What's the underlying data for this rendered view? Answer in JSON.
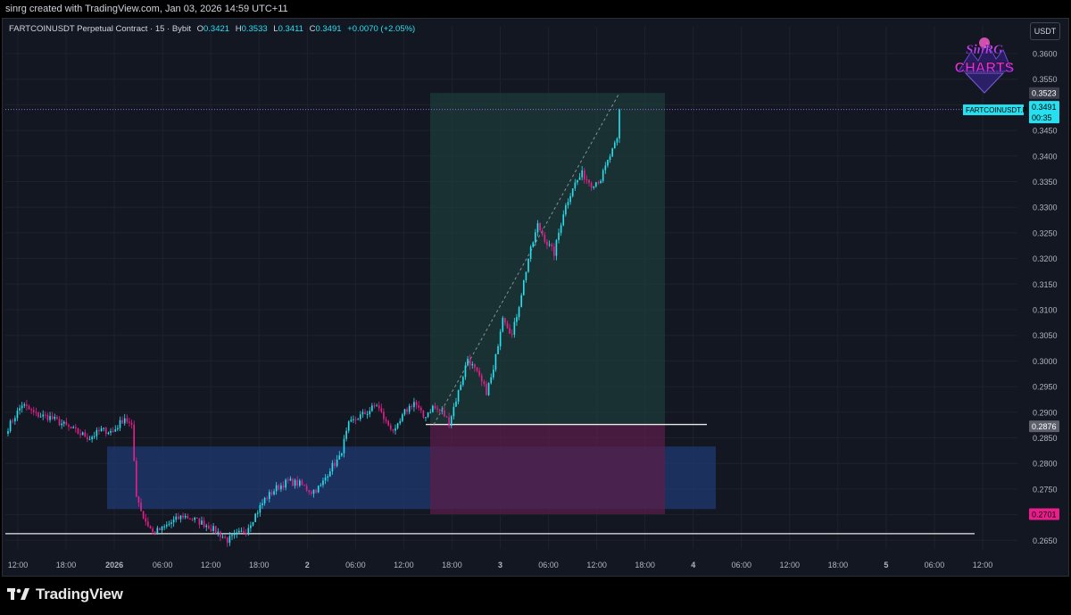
{
  "header": {
    "attribution": "sinrg created with TradingView.com, Jan 03, 2026 14:59 UTC+11"
  },
  "legend": {
    "symbol": "FARTCOINUSDT Perpetual Contract · 15 · Bybit",
    "o_label": "O",
    "o": "0.3421",
    "h_label": "H",
    "h": "0.3533",
    "l_label": "L",
    "l": "0.3411",
    "c_label": "C",
    "c": "0.3491",
    "change": "+0.0070 (+2.05%)"
  },
  "currency_button": "USDT",
  "logo": {
    "line1": "SinRG",
    "line2": "CHARTS"
  },
  "footer": {
    "brand": "TradingView"
  },
  "colors": {
    "background": "#131722",
    "bull": "#26e0f0",
    "bear": "#e91e8c",
    "grid": "#1e222d",
    "demand_zone": "#1f3a70",
    "target_zone": "#1e3b3a",
    "stop_zone": "#5a1e4a"
  },
  "chart_data": {
    "type": "candlestick",
    "title": "FARTCOINUSDT Perpetual Contract · 15 · Bybit",
    "x_labels": [
      "12:00",
      "18:00",
      "2026",
      "06:00",
      "12:00",
      "18:00",
      "2",
      "06:00",
      "12:00",
      "18:00",
      "3",
      "06:00",
      "12:00",
      "18:00",
      "4",
      "06:00",
      "12:00",
      "18:00",
      "5",
      "06:00",
      "12:00"
    ],
    "y_ticks": [
      "0.3600",
      "0.3550",
      "0.3500",
      "0.3450",
      "0.3400",
      "0.3350",
      "0.3300",
      "0.3250",
      "0.3200",
      "0.3150",
      "0.3100",
      "0.3050",
      "0.3000",
      "0.2950",
      "0.2900",
      "0.2850",
      "0.2800",
      "0.2750",
      "0.2700",
      "0.2650"
    ],
    "ylim": [
      0.2625,
      0.3635
    ],
    "price_labels": [
      {
        "text": "0.3523",
        "value": 0.3523,
        "kind": "target"
      },
      {
        "text": "0.3491",
        "value": 0.3491,
        "kind": "last"
      },
      {
        "text": "FARTCOINUSDT.P",
        "kind": "symbol_tag"
      },
      {
        "text": "00:35",
        "kind": "countdown"
      },
      {
        "text": "0.2876",
        "value": 0.2876,
        "kind": "entry"
      },
      {
        "text": "0.2701",
        "value": 0.2701,
        "kind": "stop"
      }
    ],
    "levels": {
      "entry": 0.2876,
      "low_line": 0.2663,
      "last": 0.3491,
      "target": 0.3523,
      "stop": 0.2701
    },
    "zones": {
      "demand": {
        "top": 0.2833,
        "bottom": 0.2711
      },
      "long_position": {
        "entry": 0.2876,
        "target": 0.3523,
        "stop": 0.2701
      }
    },
    "series": [
      {
        "name": "FARTCOINUSDT",
        "waypoints": [
          [
            0,
            0.287
          ],
          [
            6,
            0.2915
          ],
          [
            12,
            0.2895
          ],
          [
            18,
            0.289
          ],
          [
            24,
            0.2875
          ],
          [
            30,
            0.286
          ],
          [
            35,
            0.285
          ],
          [
            40,
            0.2865
          ],
          [
            45,
            0.2862
          ],
          [
            50,
            0.289
          ],
          [
            53,
            0.287
          ],
          [
            55,
            0.274
          ],
          [
            58,
            0.2695
          ],
          [
            62,
            0.2665
          ],
          [
            66,
            0.2672
          ],
          [
            70,
            0.2685
          ],
          [
            75,
            0.2698
          ],
          [
            80,
            0.269
          ],
          [
            85,
            0.268
          ],
          [
            90,
            0.2665
          ],
          [
            94,
            0.265
          ],
          [
            98,
            0.266
          ],
          [
            102,
            0.267
          ],
          [
            106,
            0.27
          ],
          [
            110,
            0.273
          ],
          [
            115,
            0.2752
          ],
          [
            120,
            0.2765
          ],
          [
            125,
            0.276
          ],
          [
            130,
            0.2745
          ],
          [
            134,
            0.2755
          ],
          [
            138,
            0.279
          ],
          [
            142,
            0.281
          ],
          [
            146,
            0.2875
          ],
          [
            150,
            0.289
          ],
          [
            154,
            0.29
          ],
          [
            158,
            0.2915
          ],
          [
            162,
            0.288
          ],
          [
            166,
            0.2862
          ],
          [
            170,
            0.29
          ],
          [
            174,
            0.292
          ],
          [
            178,
            0.289
          ],
          [
            182,
            0.291
          ],
          [
            186,
            0.29
          ],
          [
            189,
            0.288
          ],
          [
            193,
            0.294
          ],
          [
            197,
            0.3005
          ],
          [
            201,
            0.2975
          ],
          [
            205,
            0.294
          ],
          [
            208,
            0.298
          ],
          [
            212,
            0.309
          ],
          [
            216,
            0.305
          ],
          [
            219,
            0.311
          ],
          [
            223,
            0.32
          ],
          [
            227,
            0.3265
          ],
          [
            231,
            0.323
          ],
          [
            234,
            0.321
          ],
          [
            238,
            0.329
          ],
          [
            242,
            0.334
          ],
          [
            246,
            0.3365
          ],
          [
            250,
            0.3345
          ],
          [
            254,
            0.3355
          ],
          [
            258,
            0.34
          ],
          [
            261,
            0.343
          ],
          [
            262,
            0.3491
          ]
        ]
      }
    ]
  }
}
